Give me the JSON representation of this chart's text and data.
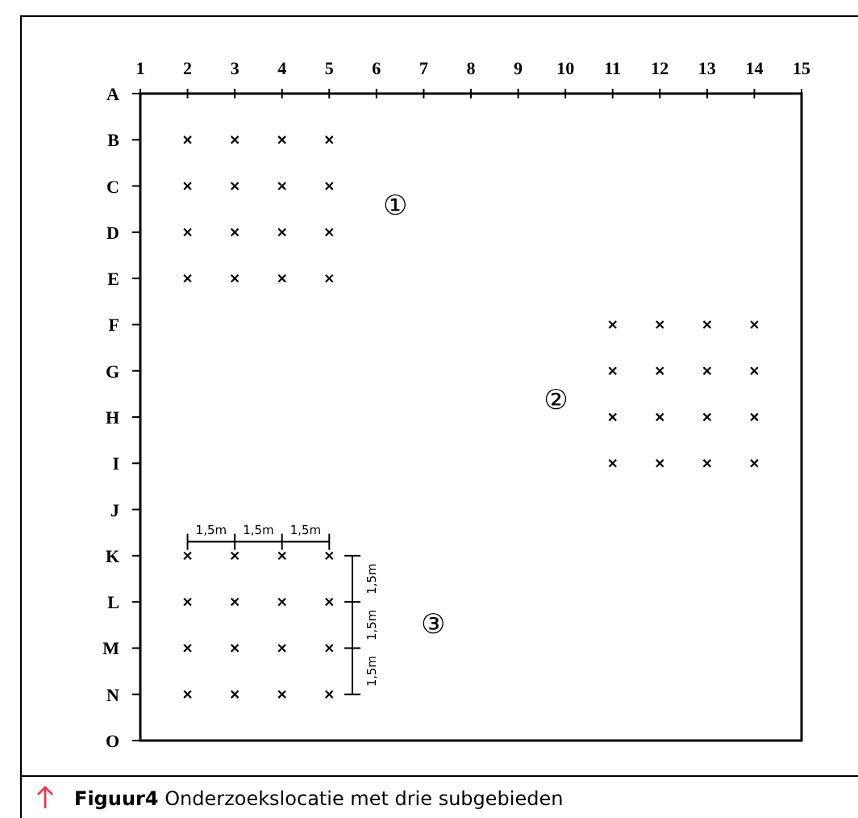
{
  "chart_data": {
    "type": "scatter",
    "orientation": "horizontal",
    "categories": [
      "A",
      "B",
      "C",
      "D",
      "E",
      "F",
      "G",
      "H",
      "I",
      "J",
      "K",
      "L",
      "M",
      "N",
      "O"
    ],
    "xlim": [
      1,
      15
    ],
    "xticks": [
      1,
      2,
      3,
      4,
      5,
      6,
      7,
      8,
      9,
      10,
      11,
      12,
      13,
      14,
      15
    ],
    "marker": "cross",
    "series": [
      {
        "color": "#000000",
        "values": [
          null,
          2,
          2,
          2,
          2,
          11,
          11,
          11,
          11,
          null,
          2,
          2,
          2,
          2,
          null
        ]
      },
      {
        "color": "#000000",
        "values": [
          null,
          3,
          3,
          3,
          3,
          12,
          12,
          12,
          12,
          null,
          3,
          3,
          3,
          3,
          null
        ]
      },
      {
        "color": "#000000",
        "values": [
          null,
          4,
          4,
          4,
          4,
          13,
          13,
          13,
          13,
          null,
          4,
          4,
          4,
          4,
          null
        ]
      },
      {
        "color": "#000000",
        "values": [
          null,
          5,
          5,
          5,
          5,
          14,
          14,
          14,
          14,
          null,
          5,
          5,
          5,
          5,
          null
        ]
      }
    ],
    "annotations": [
      "①",
      "②",
      "③",
      "1,5m",
      "1,5m",
      "1,5m",
      "1,5m",
      "1,5m",
      "1,5m",
      "Figuur4 Onderzoekslocatie met drie subgebieden"
    ]
  }
}
